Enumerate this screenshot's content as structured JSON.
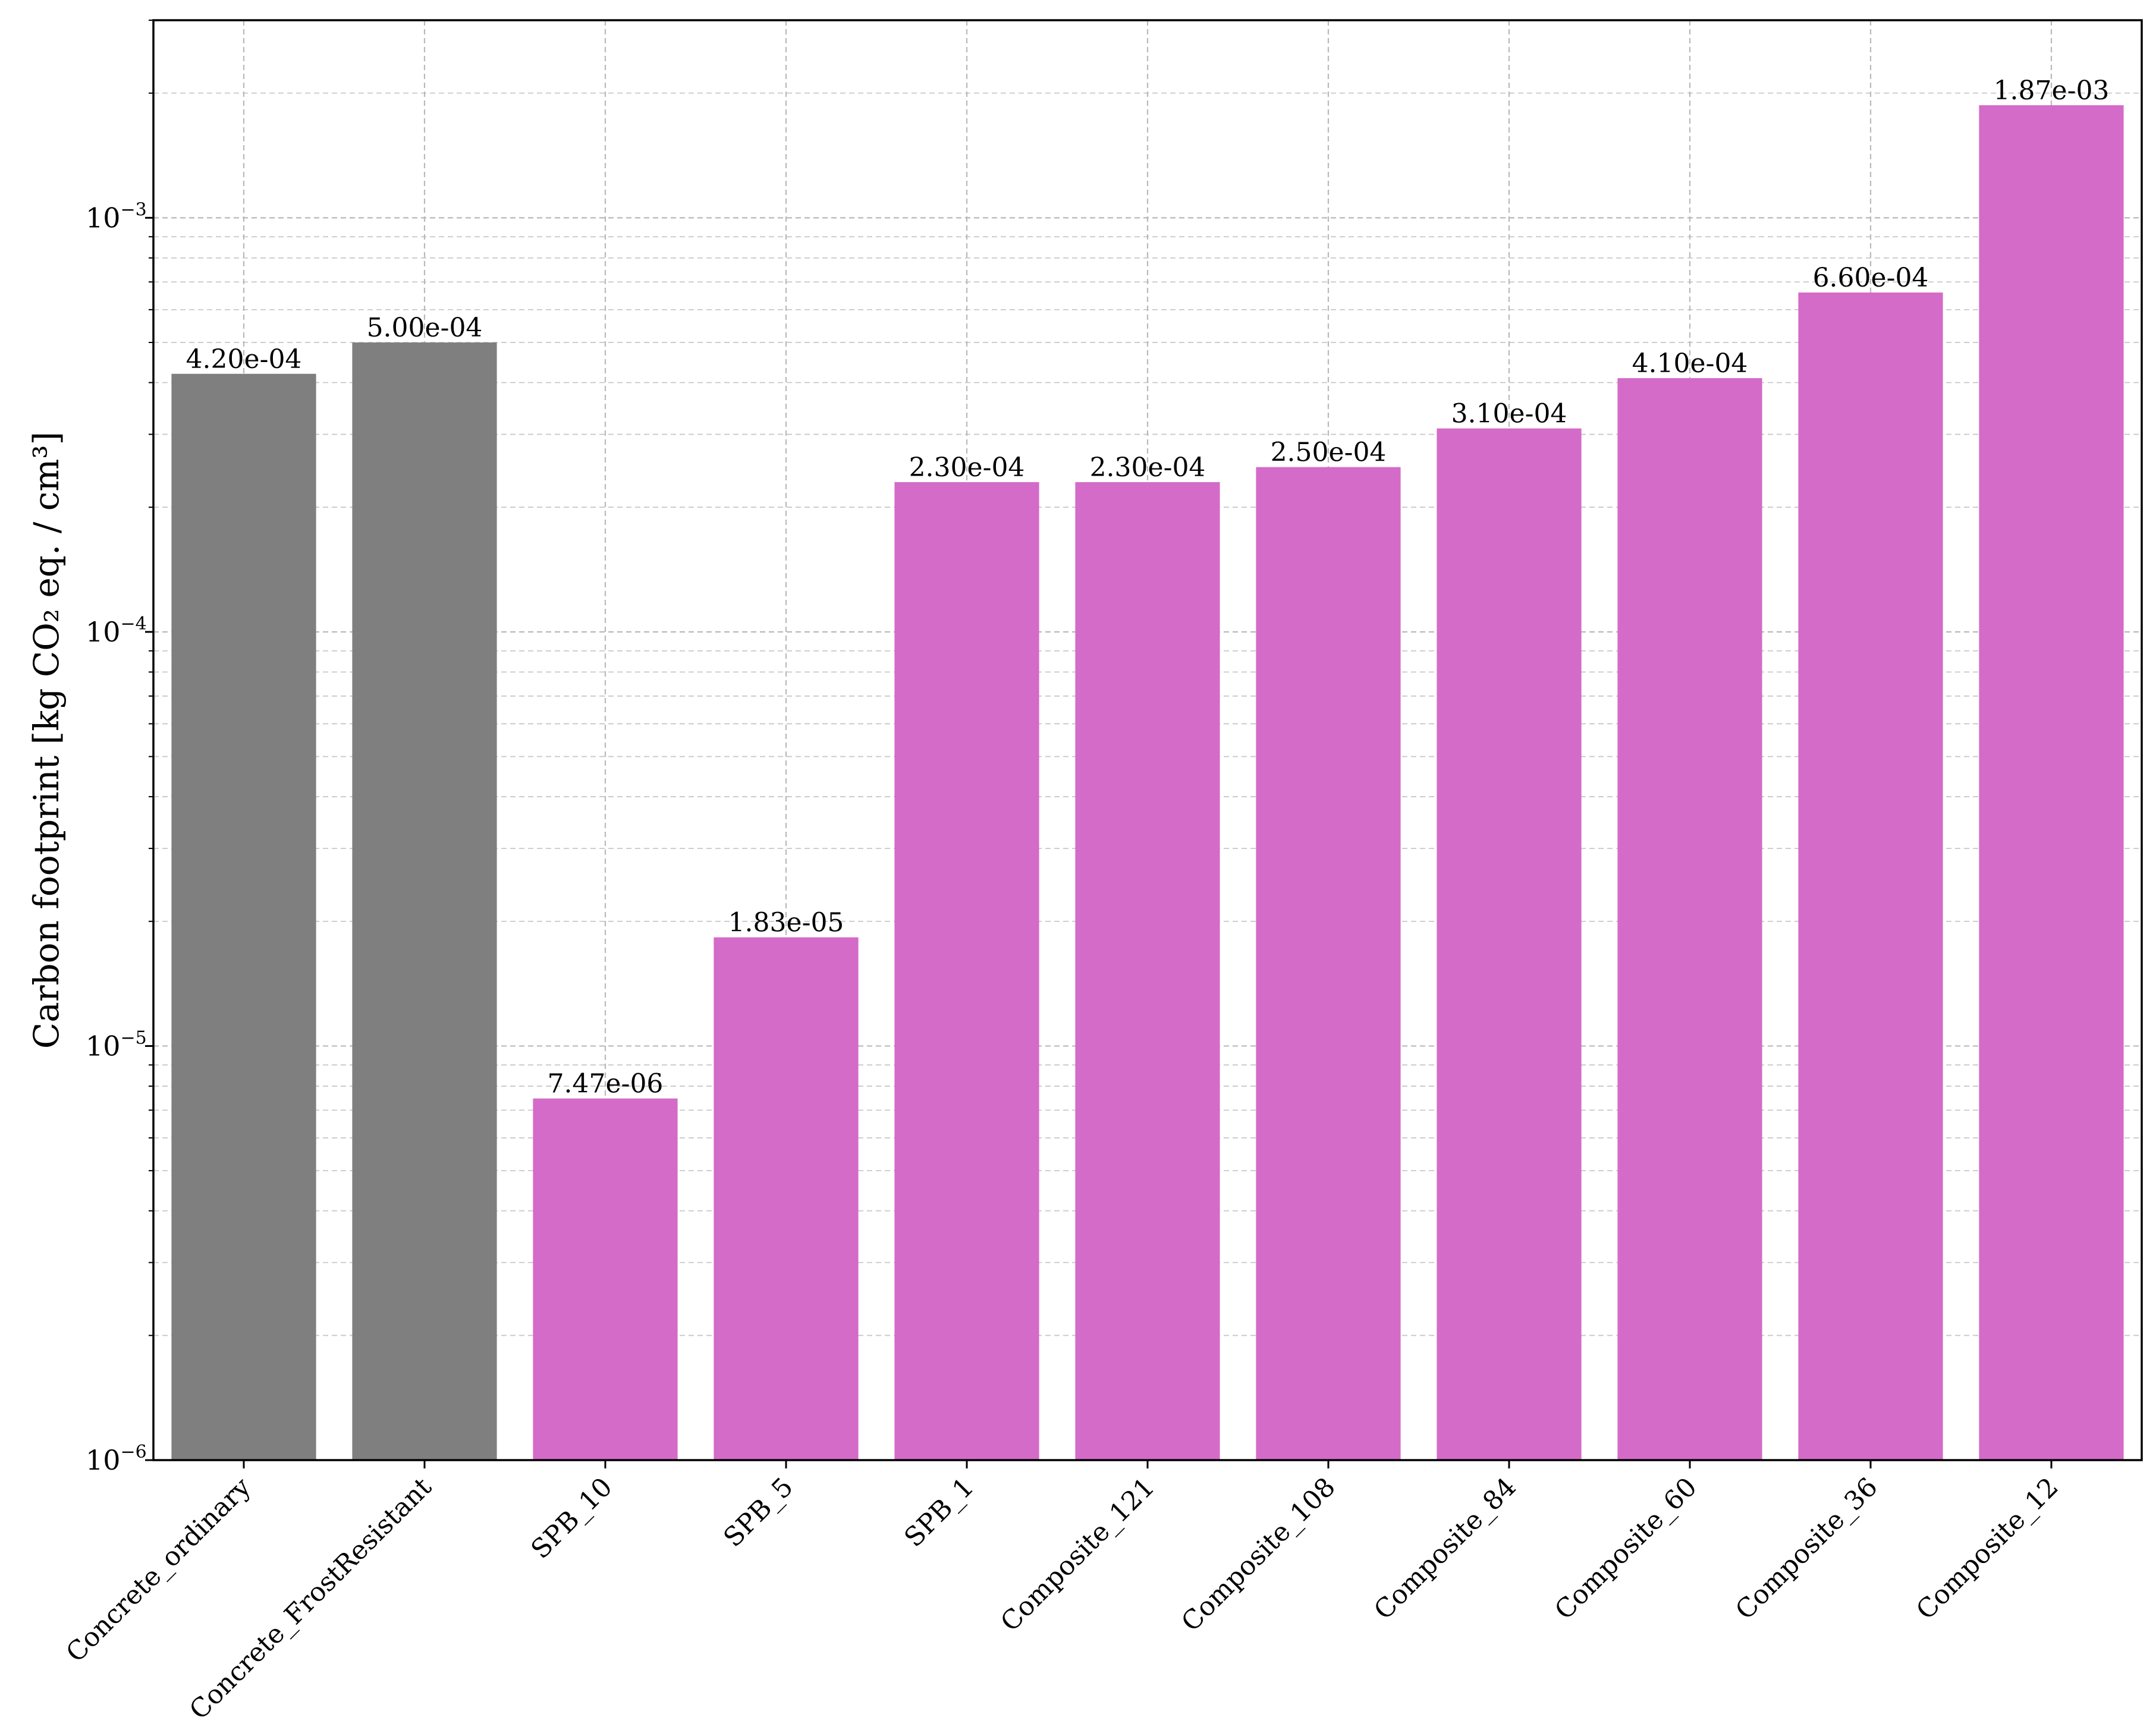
{
  "chart_data": {
    "type": "bar",
    "title": "",
    "xlabel": "",
    "ylabel": "Carbon footprint [kg CO₂ eq. / cm³]",
    "yscale": "log",
    "ylim": [
      1e-06,
      0.003
    ],
    "grid": true,
    "y_ticks": [
      {
        "base": "10",
        "exp": "−6",
        "value": 1e-06
      },
      {
        "base": "10",
        "exp": "−5",
        "value": 1e-05
      },
      {
        "base": "10",
        "exp": "−4",
        "value": 0.0001
      },
      {
        "base": "10",
        "exp": "−3",
        "value": 0.001
      }
    ],
    "categories": [
      "Concrete_ordinary",
      "Concrete_FrostResistant",
      "SPB_10",
      "SPB_5",
      "SPB_1",
      "Composite_121",
      "Composite_108",
      "Composite_84",
      "Composite_60",
      "Composite_36",
      "Composite_12"
    ],
    "values": [
      0.00042,
      0.0005,
      7.47e-06,
      1.83e-05,
      0.00023,
      0.00023,
      0.00025,
      0.00031,
      0.00041,
      0.00066,
      0.00187
    ],
    "value_labels": [
      "4.20e-04",
      "5.00e-04",
      "7.47e-06",
      "1.83e-05",
      "2.30e-04",
      "2.30e-04",
      "2.50e-04",
      "3.10e-04",
      "4.10e-04",
      "6.60e-04",
      "1.87e-03"
    ],
    "bar_colors": [
      "#7f7f7f",
      "#7f7f7f",
      "#d46bc8",
      "#d46bc8",
      "#d46bc8",
      "#d46bc8",
      "#d46bc8",
      "#d46bc8",
      "#d46bc8",
      "#d46bc8",
      "#d46bc8"
    ]
  }
}
